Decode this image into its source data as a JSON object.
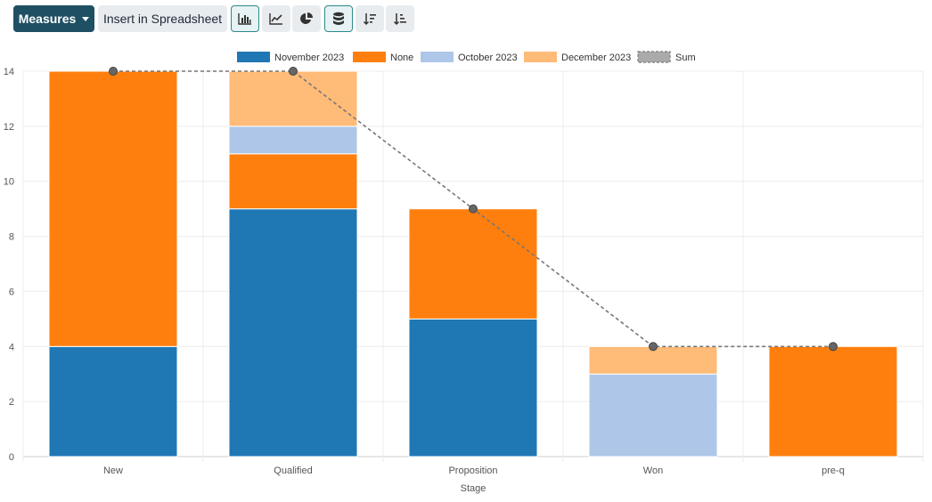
{
  "toolbar": {
    "measures_label": "Measures",
    "insert_label": "Insert in Spreadsheet",
    "icons": [
      "bar-chart-icon",
      "line-chart-icon",
      "pie-chart-icon",
      "stacked-icon",
      "sort-descending-icon",
      "sort-ascending-icon"
    ],
    "active_icons": [
      "bar-chart-icon",
      "stacked-icon"
    ]
  },
  "colors": {
    "November 2023": "#1f77b4",
    "None": "#ff7f0e",
    "October 2023": "#aec7e8",
    "December 2023": "#ffbb78",
    "Sum": "#777777"
  },
  "chart_data": {
    "type": "bar",
    "stacked": true,
    "categories": [
      "New",
      "Qualified",
      "Proposition",
      "Won",
      "pre-q"
    ],
    "series": [
      {
        "name": "November 2023",
        "values": [
          4,
          9,
          5,
          0,
          0
        ]
      },
      {
        "name": "None",
        "values": [
          10,
          2,
          4,
          0,
          4
        ]
      },
      {
        "name": "October 2023",
        "values": [
          0,
          1,
          0,
          3,
          0
        ]
      },
      {
        "name": "December 2023",
        "values": [
          0,
          2,
          0,
          1,
          0
        ]
      }
    ],
    "line_series": {
      "name": "Sum",
      "values": [
        14,
        14,
        9,
        4,
        4
      ],
      "style": "dashed"
    },
    "legend": [
      "November 2023",
      "None",
      "October 2023",
      "December 2023",
      "Sum"
    ],
    "legend_position": "top-center",
    "xlabel": "Stage",
    "ylabel": "",
    "ylim": [
      0,
      14
    ],
    "yticks": [
      "0",
      "2",
      "4",
      "6",
      "8",
      "10",
      "12",
      "14"
    ],
    "grid": true
  }
}
